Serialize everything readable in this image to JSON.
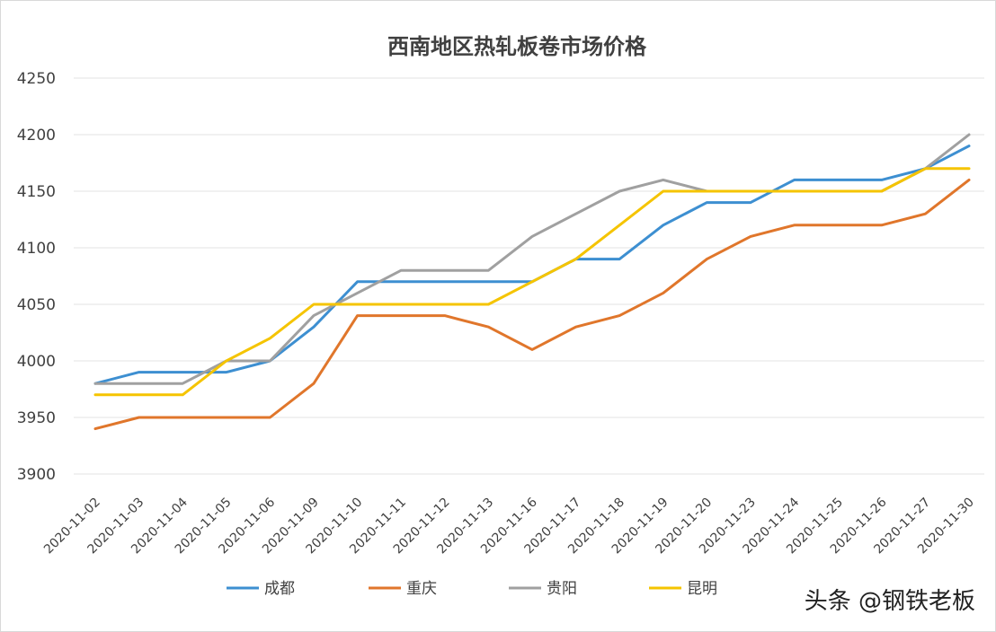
{
  "chart_data": {
    "type": "line",
    "title": "西南地区热轧板卷市场价格",
    "x": [
      "2020-11-02",
      "2020-11-03",
      "2020-11-04",
      "2020-11-05",
      "2020-11-06",
      "2020-11-09",
      "2020-11-10",
      "2020-11-11",
      "2020-11-12",
      "2020-11-13",
      "2020-11-16",
      "2020-11-17",
      "2020-11-18",
      "2020-11-19",
      "2020-11-20",
      "2020-11-23",
      "2020-11-24",
      "2020-11-25",
      "2020-11-26",
      "2020-11-27",
      "2020-11-30"
    ],
    "ylim": [
      3900,
      4250
    ],
    "yticks": [
      3900,
      3950,
      4000,
      4050,
      4100,
      4150,
      4200,
      4250
    ],
    "grid": true,
    "legend_position": "bottom",
    "series": [
      {
        "name": "成都",
        "color": "#3d8fd1",
        "values": [
          3980,
          3990,
          3990,
          3990,
          4000,
          4030,
          4070,
          4070,
          4070,
          4070,
          4070,
          4090,
          4090,
          4120,
          4140,
          4140,
          4160,
          4160,
          4160,
          4170,
          4190
        ]
      },
      {
        "name": "重庆",
        "color": "#e0762b",
        "values": [
          3940,
          3950,
          3950,
          3950,
          3950,
          3980,
          4040,
          4040,
          4040,
          4030,
          4010,
          4030,
          4040,
          4060,
          4090,
          4110,
          4120,
          4120,
          4120,
          4130,
          4160
        ]
      },
      {
        "name": "贵阳",
        "color": "#a0a0a0",
        "values": [
          3980,
          3980,
          3980,
          4000,
          4000,
          4040,
          4060,
          4080,
          4080,
          4080,
          4110,
          4130,
          4150,
          4160,
          4150,
          4150,
          4150,
          4150,
          4150,
          4170,
          4200
        ]
      },
      {
        "name": "昆明",
        "color": "#f5c400",
        "values": [
          3970,
          3970,
          3970,
          4000,
          4020,
          4050,
          4050,
          4050,
          4050,
          4050,
          4070,
          4090,
          4120,
          4150,
          4150,
          4150,
          4150,
          4150,
          4150,
          4170,
          4170
        ]
      }
    ]
  },
  "watermark": "头条 @钢铁老板"
}
